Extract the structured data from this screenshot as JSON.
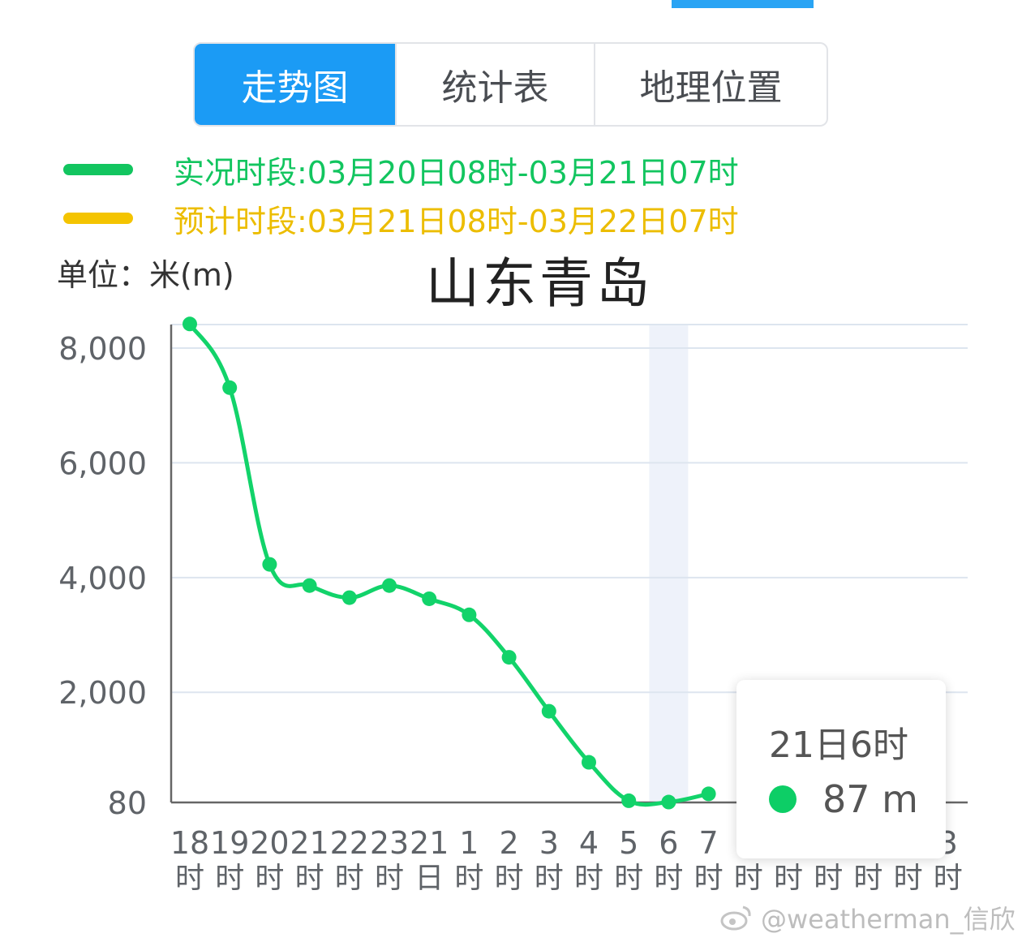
{
  "tabs": [
    {
      "label": "走势图",
      "active": true
    },
    {
      "label": "统计表",
      "active": false
    },
    {
      "label": "地理位置",
      "active": false
    }
  ],
  "legend": [
    {
      "label": "实况时段:03月20日08时-03月21日07时",
      "color": "#12c55f"
    },
    {
      "label": "预计时段:03月21日08时-03月22日07时",
      "color": "#f4c400"
    }
  ],
  "unit_label": "单位：米(m)",
  "city": "山东青岛",
  "tooltip": {
    "title": "21日6时",
    "value": "87 m"
  },
  "watermark": "@weatherman_信欣",
  "colors": {
    "line": "#12d36a",
    "axis": "#666666",
    "grid": "#dde5ef",
    "highlight": "#eef2fa"
  },
  "chart_data": {
    "type": "line",
    "title": "山东青岛",
    "ylabel": "单位：米(m)",
    "x": [
      {
        "top": "18",
        "bottom": "时"
      },
      {
        "top": "19",
        "bottom": "时"
      },
      {
        "top": "20",
        "bottom": "时"
      },
      {
        "top": "21",
        "bottom": "时"
      },
      {
        "top": "22",
        "bottom": "时"
      },
      {
        "top": "23",
        "bottom": "时"
      },
      {
        "top": "21",
        "bottom": "日"
      },
      {
        "top": "1",
        "bottom": "时"
      },
      {
        "top": "2",
        "bottom": "时"
      },
      {
        "top": "3",
        "bottom": "时"
      },
      {
        "top": "4",
        "bottom": "时"
      },
      {
        "top": "5",
        "bottom": "时"
      },
      {
        "top": "6",
        "bottom": "时"
      },
      {
        "top": "7",
        "bottom": "时"
      },
      {
        "top": "",
        "bottom": "时"
      },
      {
        "top": "",
        "bottom": "时"
      },
      {
        "top": "",
        "bottom": "时"
      },
      {
        "top": "",
        "bottom": "时"
      },
      {
        "top": "",
        "bottom": "时"
      },
      {
        "top": "3",
        "bottom": "时"
      }
    ],
    "yticks": [
      80,
      2000,
      4000,
      6000,
      8000
    ],
    "ytick_labels": [
      "80",
      "2,000",
      "4,000",
      "6,000",
      "8,000"
    ],
    "series": [
      {
        "values": [
          8420,
          7310,
          4230,
          3860,
          3650,
          3860,
          3630,
          3350,
          2610,
          1670,
          780,
          110,
          87,
          230,
          null,
          null,
          null,
          null,
          null,
          null
        ]
      }
    ],
    "highlight_index": 12,
    "ylim": [
      80,
      8450
    ],
    "grid": true,
    "legend_position": "top"
  }
}
